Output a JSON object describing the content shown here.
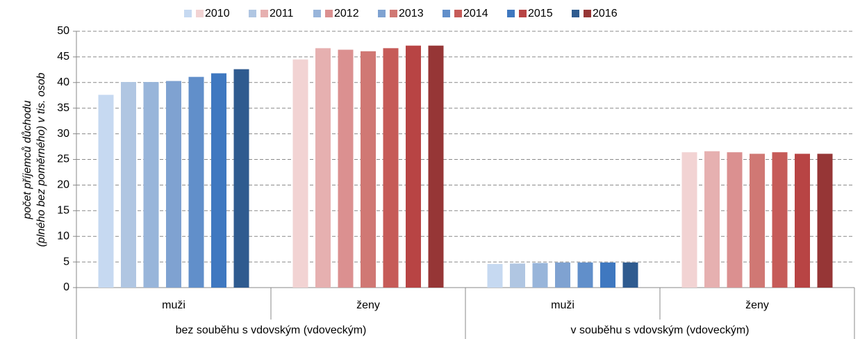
{
  "chart_data": {
    "type": "bar",
    "y_label": [
      "počet příjemců důchodu",
      "(plného bez poměrného) v tis. osob"
    ],
    "groups": [
      {
        "label": "bez souběhu s vdovským (vdoveckým)",
        "categories": [
          "muži",
          "ženy"
        ]
      },
      {
        "label": "v souběhu s vdovským (vdoveckým)",
        "categories": [
          "muži",
          "ženy"
        ]
      }
    ],
    "series": [
      {
        "name": "2010",
        "colors": [
          "#c6d9f1",
          "#f2d3d3",
          "#c6d9f1",
          "#f2d3d3"
        ],
        "values": [
          37.6,
          44.5,
          4.6,
          26.4
        ]
      },
      {
        "name": "2011",
        "colors": [
          "#b0c6e2",
          "#e6b0b0",
          "#b0c6e2",
          "#e6b0b0"
        ],
        "values": [
          40.1,
          46.7,
          4.7,
          26.6
        ]
      },
      {
        "name": "2012",
        "colors": [
          "#98b5da",
          "#db9090",
          "#98b5da",
          "#db9090"
        ],
        "values": [
          40.1,
          46.4,
          4.8,
          26.4
        ]
      },
      {
        "name": "2013",
        "colors": [
          "#7fa2d1",
          "#d07874",
          "#7fa2d1",
          "#d07874"
        ],
        "values": [
          40.3,
          46.1,
          4.9,
          26.1
        ]
      },
      {
        "name": "2014",
        "colors": [
          "#618fca",
          "#c65b58",
          "#618fca",
          "#c65b58"
        ],
        "values": [
          41.1,
          46.7,
          4.9,
          26.4
        ]
      },
      {
        "name": "2015",
        "colors": [
          "#3f78c0",
          "#b84444",
          "#3f78c0",
          "#b84444"
        ],
        "values": [
          41.8,
          47.2,
          4.9,
          26.1
        ]
      },
      {
        "name": "2016",
        "colors": [
          "#2f5b8f",
          "#963636",
          "#2f5b8f",
          "#963636"
        ],
        "values": [
          42.6,
          47.2,
          4.9,
          26.1
        ]
      }
    ],
    "ylim": [
      0,
      50
    ],
    "yticks": [
      0,
      5,
      10,
      15,
      20,
      25,
      30,
      35,
      40,
      45,
      50
    ],
    "grid": true,
    "legend": "top"
  }
}
